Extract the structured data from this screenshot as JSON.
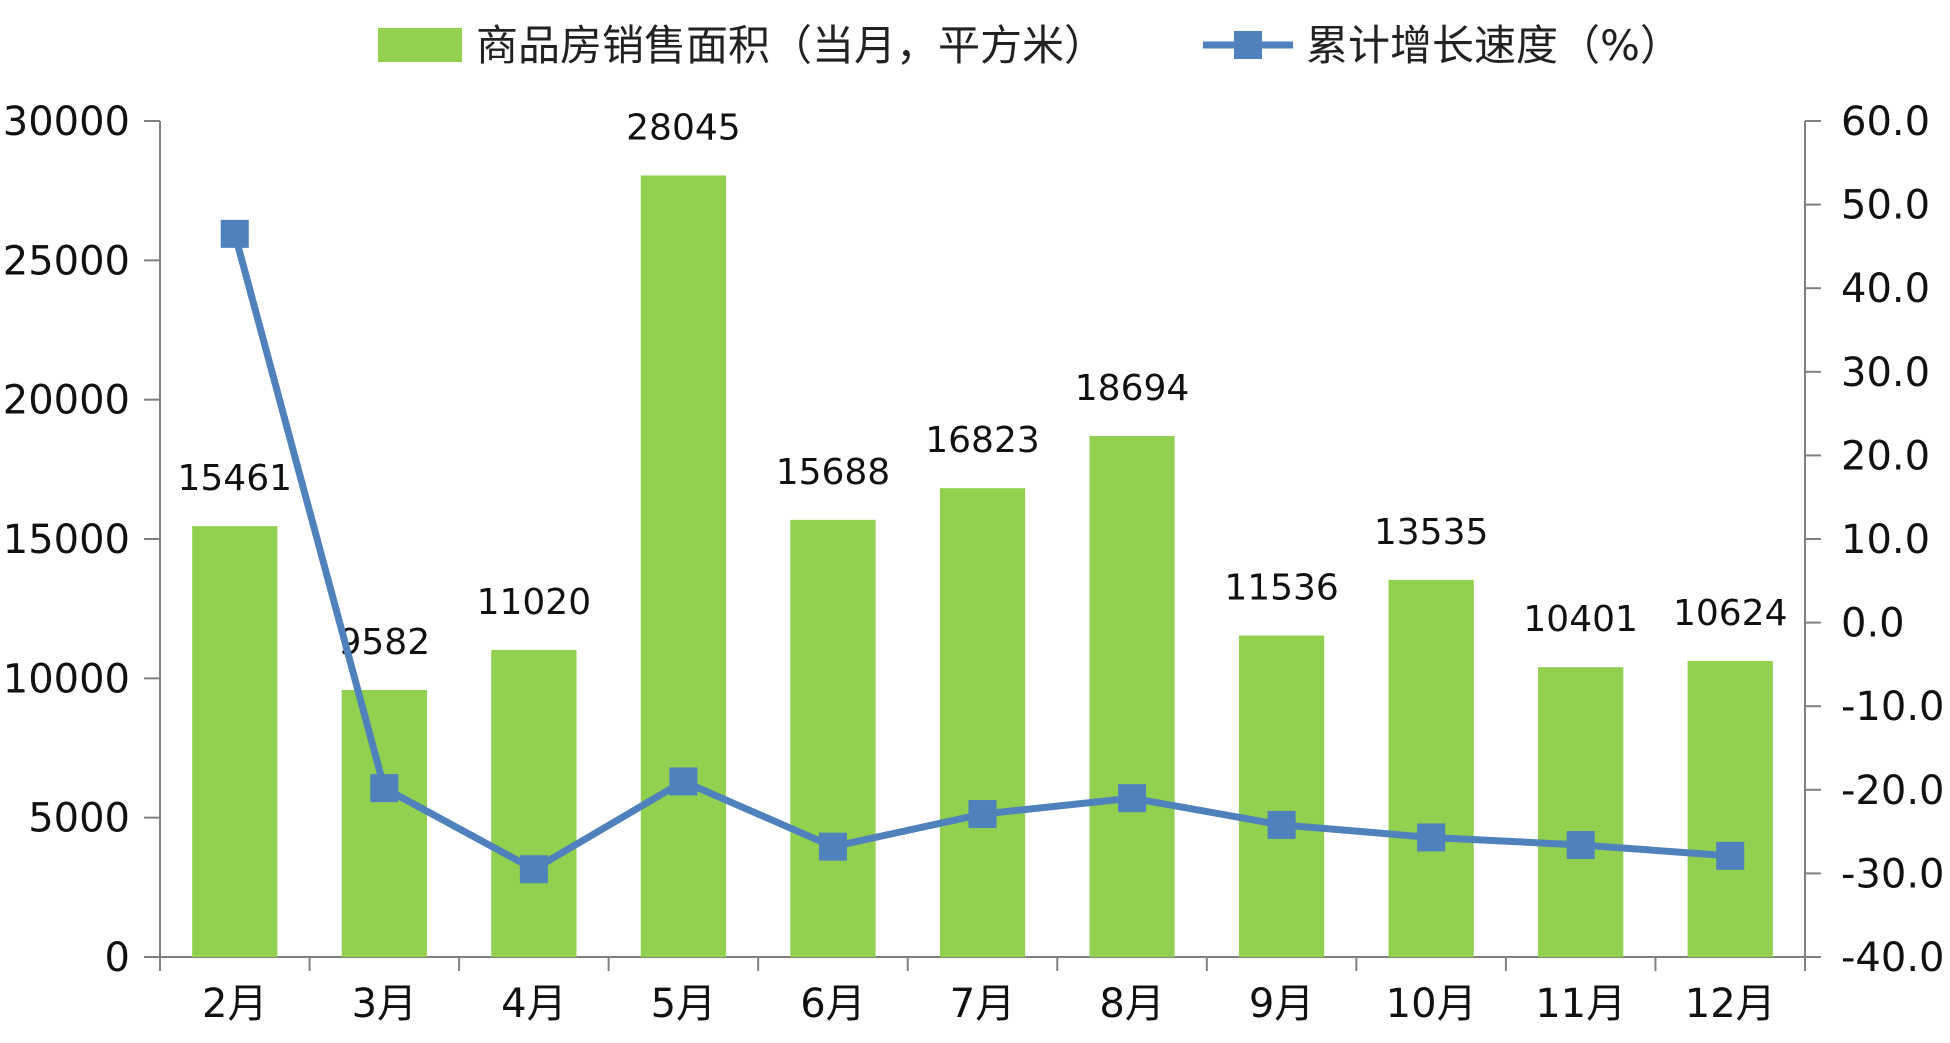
{
  "chart_data": {
    "type": "bar",
    "categories": [
      "2月",
      "3月",
      "4月",
      "5月",
      "6月",
      "7月",
      "8月",
      "9月",
      "10月",
      "11月",
      "12月"
    ],
    "series": [
      {
        "name": "商品房销售面积（当月，平方米）",
        "type": "bar",
        "axis": "left",
        "values": [
          15461,
          9582,
          11020,
          28045,
          15688,
          16823,
          18694,
          11536,
          13535,
          10401,
          10624
        ],
        "data_labels": [
          "15461",
          "9582",
          "11020",
          "28045",
          "15688",
          "16823",
          "18694",
          "11536",
          "13535",
          "10401",
          "10624"
        ]
      },
      {
        "name": "累计增长速度（%）",
        "type": "line",
        "axis": "right",
        "values": [
          46.5,
          -19.8,
          -29.5,
          -19.0,
          -26.8,
          -22.9,
          -21.0,
          -24.2,
          -25.7,
          -26.6,
          -27.9
        ]
      }
    ],
    "y_left": {
      "ylim": [
        0,
        30000
      ],
      "ticks": [
        "0",
        "5000",
        "10000",
        "15000",
        "20000",
        "25000",
        "30000"
      ]
    },
    "y_right": {
      "ylim": [
        -40,
        60
      ],
      "ticks": [
        "-40.0",
        "-30.0",
        "-20.0",
        "-10.0",
        "0.0",
        "10.0",
        "20.0",
        "30.0",
        "40.0",
        "50.0",
        "60.0"
      ],
      "negative_tick_color": "#ff0000"
    },
    "legend_position": "top",
    "grid": false,
    "colors": {
      "bar": "#92d050",
      "line": "#4f81bd",
      "axis": "#808080",
      "text": "#111111"
    }
  }
}
